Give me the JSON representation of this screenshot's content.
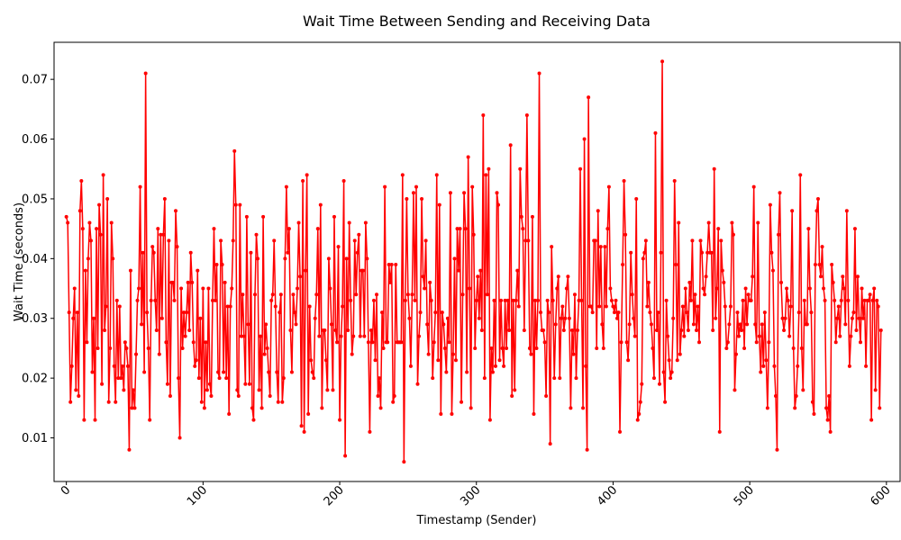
{
  "chart_data": {
    "type": "line",
    "title": "Wait Time Between Sending and Receiving Data",
    "xlabel": "Timestamp (Sender)",
    "ylabel": "Wait Time (seconds)",
    "xlim": [
      -9,
      610
    ],
    "ylim": [
      0.0027,
      0.0762
    ],
    "xticks": [
      0,
      100,
      200,
      300,
      400,
      500,
      600
    ],
    "xtick_labels": [
      "0",
      "100",
      "200",
      "300",
      "400",
      "500",
      "600"
    ],
    "xtick_rotation": 45,
    "yticks": [
      0.01,
      0.02,
      0.03,
      0.04,
      0.05,
      0.06,
      0.07
    ],
    "ytick_labels": [
      "0.01",
      "0.02",
      "0.03",
      "0.04",
      "0.05",
      "0.06",
      "0.07"
    ],
    "grid": false,
    "legend": "none",
    "series": [
      {
        "color": "#ff0000",
        "marker": "circle",
        "x_start": 0,
        "x_step": 1,
        "values": [
          0.047,
          0.046,
          0.031,
          0.016,
          0.022,
          0.03,
          0.035,
          0.018,
          0.031,
          0.017,
          0.048,
          0.053,
          0.045,
          0.013,
          0.038,
          0.026,
          0.04,
          0.046,
          0.043,
          0.021,
          0.03,
          0.013,
          0.045,
          0.025,
          0.049,
          0.044,
          0.019,
          0.054,
          0.028,
          0.032,
          0.05,
          0.016,
          0.025,
          0.046,
          0.04,
          0.022,
          0.016,
          0.033,
          0.02,
          0.032,
          0.02,
          0.022,
          0.018,
          0.026,
          0.025,
          0.022,
          0.008,
          0.038,
          0.015,
          0.018,
          0.015,
          0.024,
          0.033,
          0.035,
          0.052,
          0.029,
          0.041,
          0.021,
          0.071,
          0.031,
          0.025,
          0.013,
          0.033,
          0.042,
          0.041,
          0.033,
          0.028,
          0.045,
          0.024,
          0.044,
          0.03,
          0.044,
          0.05,
          0.026,
          0.019,
          0.043,
          0.017,
          0.036,
          0.036,
          0.033,
          0.048,
          0.042,
          0.02,
          0.01,
          0.035,
          0.025,
          0.031,
          0.027,
          0.031,
          0.036,
          0.028,
          0.041,
          0.036,
          0.026,
          0.022,
          0.023,
          0.038,
          0.02,
          0.03,
          0.016,
          0.035,
          0.015,
          0.026,
          0.018,
          0.035,
          0.019,
          0.017,
          0.033,
          0.045,
          0.033,
          0.039,
          0.021,
          0.02,
          0.043,
          0.039,
          0.021,
          0.036,
          0.02,
          0.032,
          0.014,
          0.032,
          0.035,
          0.043,
          0.058,
          0.049,
          0.018,
          0.017,
          0.049,
          0.027,
          0.034,
          0.027,
          0.019,
          0.047,
          0.029,
          0.019,
          0.041,
          0.015,
          0.013,
          0.034,
          0.044,
          0.04,
          0.018,
          0.027,
          0.015,
          0.047,
          0.024,
          0.029,
          0.025,
          0.021,
          0.017,
          0.033,
          0.034,
          0.043,
          0.032,
          0.021,
          0.016,
          0.031,
          0.034,
          0.016,
          0.02,
          0.04,
          0.052,
          0.041,
          0.045,
          0.028,
          0.021,
          0.034,
          0.031,
          0.029,
          0.035,
          0.046,
          0.037,
          0.012,
          0.053,
          0.011,
          0.038,
          0.054,
          0.014,
          0.032,
          0.023,
          0.021,
          0.02,
          0.03,
          0.034,
          0.045,
          0.027,
          0.049,
          0.015,
          0.028,
          0.028,
          0.023,
          0.018,
          0.04,
          0.035,
          0.029,
          0.018,
          0.047,
          0.028,
          0.026,
          0.042,
          0.013,
          0.027,
          0.032,
          0.053,
          0.007,
          0.04,
          0.028,
          0.046,
          0.033,
          0.024,
          0.027,
          0.043,
          0.034,
          0.041,
          0.044,
          0.027,
          0.038,
          0.038,
          0.027,
          0.046,
          0.04,
          0.026,
          0.011,
          0.028,
          0.026,
          0.033,
          0.023,
          0.034,
          0.017,
          0.02,
          0.015,
          0.031,
          0.025,
          0.052,
          0.026,
          0.026,
          0.039,
          0.036,
          0.039,
          0.016,
          0.017,
          0.039,
          0.026,
          0.026,
          0.026,
          0.026,
          0.054,
          0.006,
          0.033,
          0.05,
          0.034,
          0.03,
          0.022,
          0.034,
          0.051,
          0.033,
          0.052,
          0.019,
          0.027,
          0.031,
          0.05,
          0.037,
          0.035,
          0.043,
          0.029,
          0.024,
          0.036,
          0.033,
          0.02,
          0.026,
          0.031,
          0.054,
          0.023,
          0.049,
          0.014,
          0.031,
          0.029,
          0.025,
          0.021,
          0.03,
          0.026,
          0.051,
          0.014,
          0.024,
          0.04,
          0.023,
          0.045,
          0.038,
          0.045,
          0.016,
          0.034,
          0.051,
          0.045,
          0.021,
          0.057,
          0.035,
          0.015,
          0.052,
          0.044,
          0.025,
          0.033,
          0.037,
          0.03,
          0.038,
          0.028,
          0.064,
          0.02,
          0.054,
          0.034,
          0.055,
          0.013,
          0.025,
          0.021,
          0.033,
          0.022,
          0.051,
          0.049,
          0.023,
          0.033,
          0.025,
          0.022,
          0.033,
          0.025,
          0.033,
          0.028,
          0.059,
          0.017,
          0.033,
          0.018,
          0.033,
          0.038,
          0.032,
          0.055,
          0.047,
          0.045,
          0.028,
          0.043,
          0.064,
          0.043,
          0.025,
          0.024,
          0.047,
          0.014,
          0.033,
          0.025,
          0.033,
          0.071,
          0.031,
          0.028,
          0.028,
          0.026,
          0.017,
          0.033,
          0.031,
          0.009,
          0.042,
          0.033,
          0.02,
          0.029,
          0.035,
          0.037,
          0.02,
          0.03,
          0.032,
          0.028,
          0.03,
          0.035,
          0.037,
          0.03,
          0.015,
          0.028,
          0.024,
          0.034,
          0.02,
          0.028,
          0.033,
          0.055,
          0.033,
          0.015,
          0.06,
          0.022,
          0.008,
          0.067,
          0.032,
          0.032,
          0.031,
          0.043,
          0.043,
          0.025,
          0.048,
          0.032,
          0.042,
          0.029,
          0.025,
          0.042,
          0.032,
          0.045,
          0.052,
          0.035,
          0.033,
          0.032,
          0.031,
          0.033,
          0.03,
          0.031,
          0.011,
          0.026,
          0.039,
          0.053,
          0.044,
          0.026,
          0.023,
          0.029,
          0.041,
          0.034,
          0.03,
          0.027,
          0.05,
          0.013,
          0.014,
          0.016,
          0.019,
          0.04,
          0.041,
          0.043,
          0.032,
          0.036,
          0.031,
          0.029,
          0.025,
          0.02,
          0.061,
          0.028,
          0.031,
          0.019,
          0.041,
          0.073,
          0.021,
          0.016,
          0.033,
          0.027,
          0.023,
          0.02,
          0.021,
          0.03,
          0.053,
          0.039,
          0.023,
          0.046,
          0.024,
          0.028,
          0.032,
          0.027,
          0.035,
          0.031,
          0.028,
          0.036,
          0.033,
          0.043,
          0.029,
          0.034,
          0.028,
          0.032,
          0.026,
          0.043,
          0.041,
          0.035,
          0.034,
          0.037,
          0.041,
          0.046,
          0.041,
          0.041,
          0.028,
          0.055,
          0.03,
          0.035,
          0.045,
          0.011,
          0.043,
          0.038,
          0.036,
          0.032,
          0.025,
          0.026,
          0.029,
          0.032,
          0.046,
          0.044,
          0.018,
          0.024,
          0.031,
          0.027,
          0.029,
          0.028,
          0.033,
          0.025,
          0.035,
          0.029,
          0.034,
          0.033,
          0.033,
          0.037,
          0.052,
          0.029,
          0.026,
          0.046,
          0.027,
          0.021,
          0.029,
          0.022,
          0.031,
          0.023,
          0.015,
          0.026,
          0.049,
          0.041,
          0.038,
          0.022,
          0.017,
          0.008,
          0.044,
          0.051,
          0.036,
          0.03,
          0.028,
          0.03,
          0.035,
          0.033,
          0.027,
          0.032,
          0.048,
          0.025,
          0.015,
          0.017,
          0.022,
          0.031,
          0.054,
          0.025,
          0.018,
          0.033,
          0.029,
          0.029,
          0.045,
          0.035,
          0.031,
          0.016,
          0.014,
          0.039,
          0.048,
          0.05,
          0.039,
          0.037,
          0.042,
          0.035,
          0.033,
          0.015,
          0.013,
          0.017,
          0.011,
          0.039,
          0.036,
          0.033,
          0.026,
          0.03,
          0.032,
          0.027,
          0.033,
          0.037,
          0.035,
          0.029,
          0.048,
          0.033,
          0.022,
          0.027,
          0.03,
          0.031,
          0.045,
          0.028,
          0.037,
          0.03,
          0.026,
          0.035,
          0.03,
          0.033,
          0.022,
          0.033,
          0.033,
          0.034,
          0.013,
          0.033,
          0.035,
          0.018,
          0.033,
          0.032,
          0.015,
          0.028
        ]
      }
    ]
  }
}
